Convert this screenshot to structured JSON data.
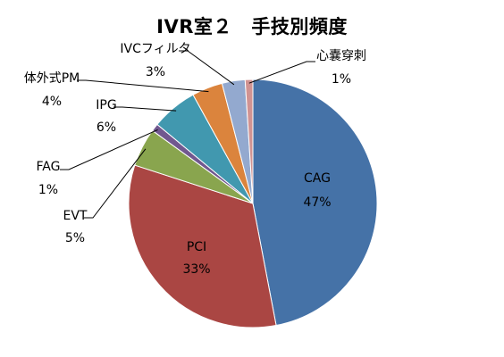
{
  "chart_data": {
    "type": "pie",
    "title": "IVR室２　手技別頻度",
    "slices": [
      {
        "label": "CAG",
        "value": 47,
        "value_text": "47%",
        "color": "#4572A7"
      },
      {
        "label": "PCI",
        "value": 33,
        "value_text": "33%",
        "color": "#AA4643"
      },
      {
        "label": "EVT",
        "value": 5,
        "value_text": "5%",
        "color": "#89A54E"
      },
      {
        "label": "FAG",
        "value": 1,
        "value_text": "1%",
        "color": "#71588F"
      },
      {
        "label": "IPG",
        "value": 6,
        "value_text": "6%",
        "color": "#4198AF"
      },
      {
        "label": "体外式PM",
        "value": 4,
        "value_text": "4%",
        "color": "#DB843D"
      },
      {
        "label": "IVCフィルタ",
        "value": 3,
        "value_text": "3%",
        "color": "#93A9CF"
      },
      {
        "label": "心嚢穿刺",
        "value": 1,
        "value_text": "1%",
        "color": "#D19392"
      }
    ]
  }
}
